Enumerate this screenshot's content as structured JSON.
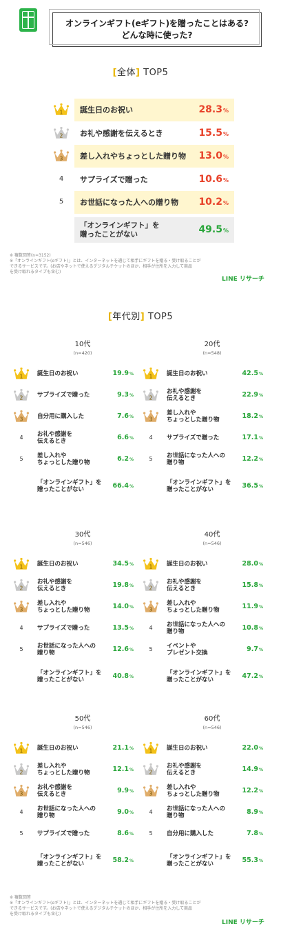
{
  "title": {
    "line1": "オンラインギフト(eギフト)を贈ったことはある?",
    "line2": "どんな時に使った?"
  },
  "overall": {
    "heading": "全体",
    "heading_suffix": "TOP5",
    "rows": [
      {
        "rank": "1",
        "label": "誕生日のお祝い",
        "value": "28.3",
        "unit": "%"
      },
      {
        "rank": "2",
        "label": "お礼や感謝を伝えるとき",
        "value": "15.5",
        "unit": "%"
      },
      {
        "rank": "3",
        "label": "差し入れやちょっとした贈り物",
        "value": "13.0",
        "unit": "%"
      },
      {
        "rank": "4",
        "label": "サプライズで贈った",
        "value": "10.6",
        "unit": "%"
      },
      {
        "rank": "5",
        "label": "お世話になった人への贈り物",
        "value": "10.2",
        "unit": "%"
      }
    ],
    "none": {
      "label1": "「オンラインギフト」を",
      "label2": "贈ったことがない",
      "value": "49.5",
      "unit": "%"
    }
  },
  "note_top": {
    "l1": "※ 複数回答(n=3152)",
    "l2": "※「オンラインギフト(eギフト)」とは、インターネットを通じて相手にギフトを贈る・受け取ることが",
    "l3": "できるサービスです。(お店やネットで使えるデジタルチケットのほか、相手が住所を入力して商品",
    "l4": "を受け取れるタイプも含む)"
  },
  "brand": "LINE リサーチ",
  "age": {
    "heading": "年代別",
    "heading_suffix": "TOP5",
    "groups": [
      {
        "title": "10代",
        "n": "(n=420)",
        "rows": [
          {
            "rank": "1",
            "l1": "誕生日のお祝い",
            "l2": "",
            "value": "19.9"
          },
          {
            "rank": "2",
            "l1": "サプライズで贈った",
            "l2": "",
            "value": "9.3"
          },
          {
            "rank": "3",
            "l1": "自分用に購入した",
            "l2": "",
            "value": "7.6"
          },
          {
            "rank": "4",
            "l1": "お礼や感謝を",
            "l2": "伝えるとき",
            "value": "6.6"
          },
          {
            "rank": "5",
            "l1": "差し入れや",
            "l2": "ちょっとした贈り物",
            "value": "6.2"
          }
        ],
        "none": {
          "l1": "「オンラインギフト」を",
          "l2": "贈ったことがない",
          "value": "66.4"
        }
      },
      {
        "title": "20代",
        "n": "(n=548)",
        "rows": [
          {
            "rank": "1",
            "l1": "誕生日のお祝い",
            "l2": "",
            "value": "42.5"
          },
          {
            "rank": "2",
            "l1": "お礼や感謝を",
            "l2": "伝えるとき",
            "value": "22.9"
          },
          {
            "rank": "3",
            "l1": "差し入れや",
            "l2": "ちょっとした贈り物",
            "value": "18.2"
          },
          {
            "rank": "4",
            "l1": "サプライズで贈った",
            "l2": "",
            "value": "17.1"
          },
          {
            "rank": "5",
            "l1": "お世話になった人への",
            "l2": "贈り物",
            "value": "12.2"
          }
        ],
        "none": {
          "l1": "「オンラインギフト」を",
          "l2": "贈ったことがない",
          "value": "36.5"
        }
      },
      {
        "title": "30代",
        "n": "(n=546)",
        "rows": [
          {
            "rank": "1",
            "l1": "誕生日のお祝い",
            "l2": "",
            "value": "34.5"
          },
          {
            "rank": "2",
            "l1": "お礼や感謝を",
            "l2": "伝えるとき",
            "value": "19.8"
          },
          {
            "rank": "3",
            "l1": "差し入れや",
            "l2": "ちょっとした贈り物",
            "value": "14.0"
          },
          {
            "rank": "4",
            "l1": "サプライズで贈った",
            "l2": "",
            "value": "13.5"
          },
          {
            "rank": "5",
            "l1": "お世話になった人への",
            "l2": "贈り物",
            "value": "12.6"
          }
        ],
        "none": {
          "l1": "「オンラインギフト」を",
          "l2": "贈ったことがない",
          "value": "40.8"
        }
      },
      {
        "title": "40代",
        "n": "(n=546)",
        "rows": [
          {
            "rank": "1",
            "l1": "誕生日のお祝い",
            "l2": "",
            "value": "28.0"
          },
          {
            "rank": "2",
            "l1": "お礼や感謝を",
            "l2": "伝えるとき",
            "value": "15.8"
          },
          {
            "rank": "3",
            "l1": "差し入れや",
            "l2": "ちょっとした贈り物",
            "value": "11.9"
          },
          {
            "rank": "4",
            "l1": "お世話になった人への",
            "l2": "贈り物",
            "value": "10.8"
          },
          {
            "rank": "5",
            "l1": "イベントや",
            "l2": "プレゼント交換",
            "value": "9.7"
          }
        ],
        "none": {
          "l1": "「オンラインギフト」を",
          "l2": "贈ったことがない",
          "value": "47.2"
        }
      },
      {
        "title": "50代",
        "n": "(n=546)",
        "rows": [
          {
            "rank": "1",
            "l1": "誕生日のお祝い",
            "l2": "",
            "value": "21.1"
          },
          {
            "rank": "2",
            "l1": "差し入れや",
            "l2": "ちょっとした贈り物",
            "value": "12.1"
          },
          {
            "rank": "3",
            "l1": "お礼や感謝を",
            "l2": "伝えるとき",
            "value": "9.9"
          },
          {
            "rank": "4",
            "l1": "お世話になった人への",
            "l2": "贈り物",
            "value": "9.0"
          },
          {
            "rank": "5",
            "l1": "サプライズで贈った",
            "l2": "",
            "value": "8.6"
          }
        ],
        "none": {
          "l1": "「オンラインギフト」を",
          "l2": "贈ったことがない",
          "value": "58.2"
        }
      },
      {
        "title": "60代",
        "n": "(n=546)",
        "rows": [
          {
            "rank": "1",
            "l1": "誕生日のお祝い",
            "l2": "",
            "value": "22.0"
          },
          {
            "rank": "2",
            "l1": "お礼や感謝を",
            "l2": "伝えるとき",
            "value": "14.9"
          },
          {
            "rank": "3",
            "l1": "差し入れや",
            "l2": "ちょっとした贈り物",
            "value": "12.2"
          },
          {
            "rank": "4",
            "l1": "お世話になった人への",
            "l2": "贈り物",
            "value": "8.9"
          },
          {
            "rank": "5",
            "l1": "自分用に購入した",
            "l2": "",
            "value": "7.8"
          }
        ],
        "none": {
          "l1": "「オンラインギフト」を",
          "l2": "贈ったことがない",
          "value": "55.3"
        }
      }
    ]
  },
  "note_bottom": {
    "l1": "※ 複数回答",
    "l2": "※「オンラインギフト(eギフト)」とは、インターネットを通じて相手にギフトを贈る・受け取ることが",
    "l3": "できるサービスです。(お店やネットで使えるデジタルチケットのほか、相手が住所を入力して商品",
    "l4": "を受け取れるタイプも含む)"
  },
  "colors": {
    "gold": "#f4c21a",
    "silver": "#c8c8c8",
    "bronze": "#e0ad6a",
    "highlight": "#fff6cf",
    "red": "#e8422a",
    "green": "#2aa63b",
    "brand_green": "#2cb34a"
  }
}
